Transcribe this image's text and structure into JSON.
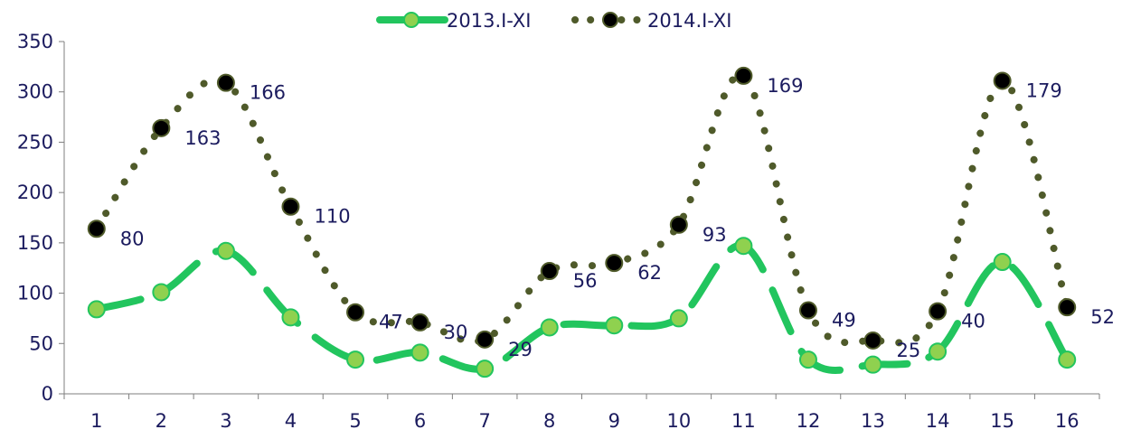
{
  "chart_data": {
    "type": "line",
    "title": "",
    "xlabel": "",
    "ylabel": "",
    "categories": [
      "1",
      "2",
      "3",
      "4",
      "5",
      "6",
      "7",
      "8",
      "9",
      "10",
      "11",
      "12",
      "13",
      "14",
      "15",
      "16"
    ],
    "ylim": [
      0,
      350
    ],
    "yticks": [
      "0",
      "50",
      "100",
      "150",
      "200",
      "250",
      "300",
      "350"
    ],
    "legend_position": "top-center",
    "grid": false,
    "series": [
      {
        "name": "2013.I-XI",
        "color": "#22c55e",
        "marker_color": "#8fd14f",
        "style": "dashed-smooth",
        "values": [
          84,
          101,
          142,
          76,
          34,
          41,
          25,
          66,
          68,
          75,
          147,
          34,
          29,
          42,
          131,
          34
        ]
      },
      {
        "name": "2014.I-XI",
        "color": "#4f5a2a",
        "marker_color": "#000000",
        "style": "dotted-smooth",
        "values": [
          164,
          264,
          309,
          186,
          81,
          71,
          54,
          122,
          130,
          168,
          316,
          83,
          53,
          82,
          311,
          86
        ]
      }
    ],
    "data_labels": [
      "80",
      "163",
      "166",
      "110",
      "47",
      "30",
      "29",
      "56",
      "62",
      "93",
      "169",
      "49",
      "25",
      "40",
      "179",
      "52"
    ]
  }
}
